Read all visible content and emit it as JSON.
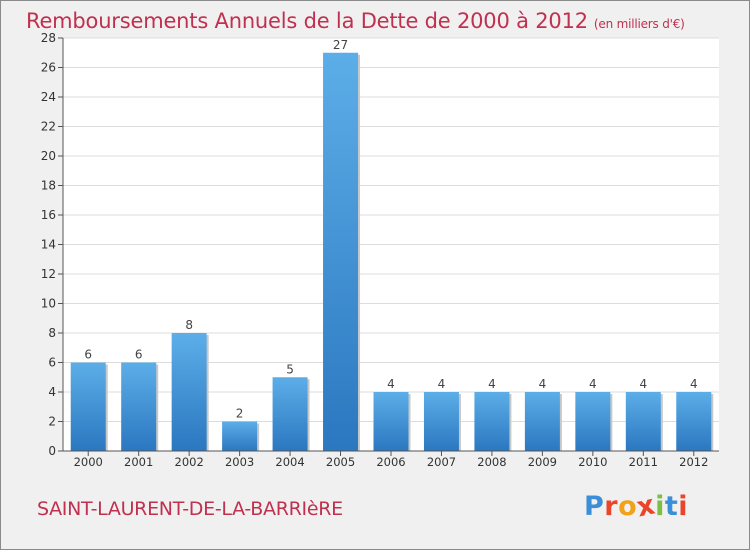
{
  "chart_data": {
    "type": "bar",
    "title": "Remboursements Annuels de la Dette de 2000 à 2012",
    "unit": "(en milliers d'€)",
    "categories": [
      "2000",
      "2001",
      "2002",
      "2003",
      "2004",
      "2005",
      "2006",
      "2007",
      "2008",
      "2009",
      "2010",
      "2011",
      "2012"
    ],
    "values": [
      6,
      6,
      8,
      2,
      5,
      27,
      4,
      4,
      4,
      4,
      4,
      4,
      4
    ],
    "ylim": [
      0,
      28
    ],
    "yticks": [
      0,
      2,
      4,
      6,
      8,
      10,
      12,
      14,
      16,
      18,
      20,
      22,
      24,
      26,
      28
    ],
    "grid": true,
    "bar_color": "#3d8fd6"
  },
  "footer": {
    "commune": "SAINT-LAURENT-DE-LA-BARRIèRE",
    "logo_letters": [
      {
        "char": "P",
        "color": "#3b8fd8"
      },
      {
        "char": "r",
        "color": "#e8452a"
      },
      {
        "char": "o",
        "color": "#f0a21a"
      },
      {
        "char": "x",
        "color": "#e8452a"
      },
      {
        "char": "i",
        "color": "#7ac143"
      },
      {
        "char": "t",
        "color": "#3b8fd8"
      },
      {
        "char": "i",
        "color": "#e8452a"
      }
    ]
  }
}
